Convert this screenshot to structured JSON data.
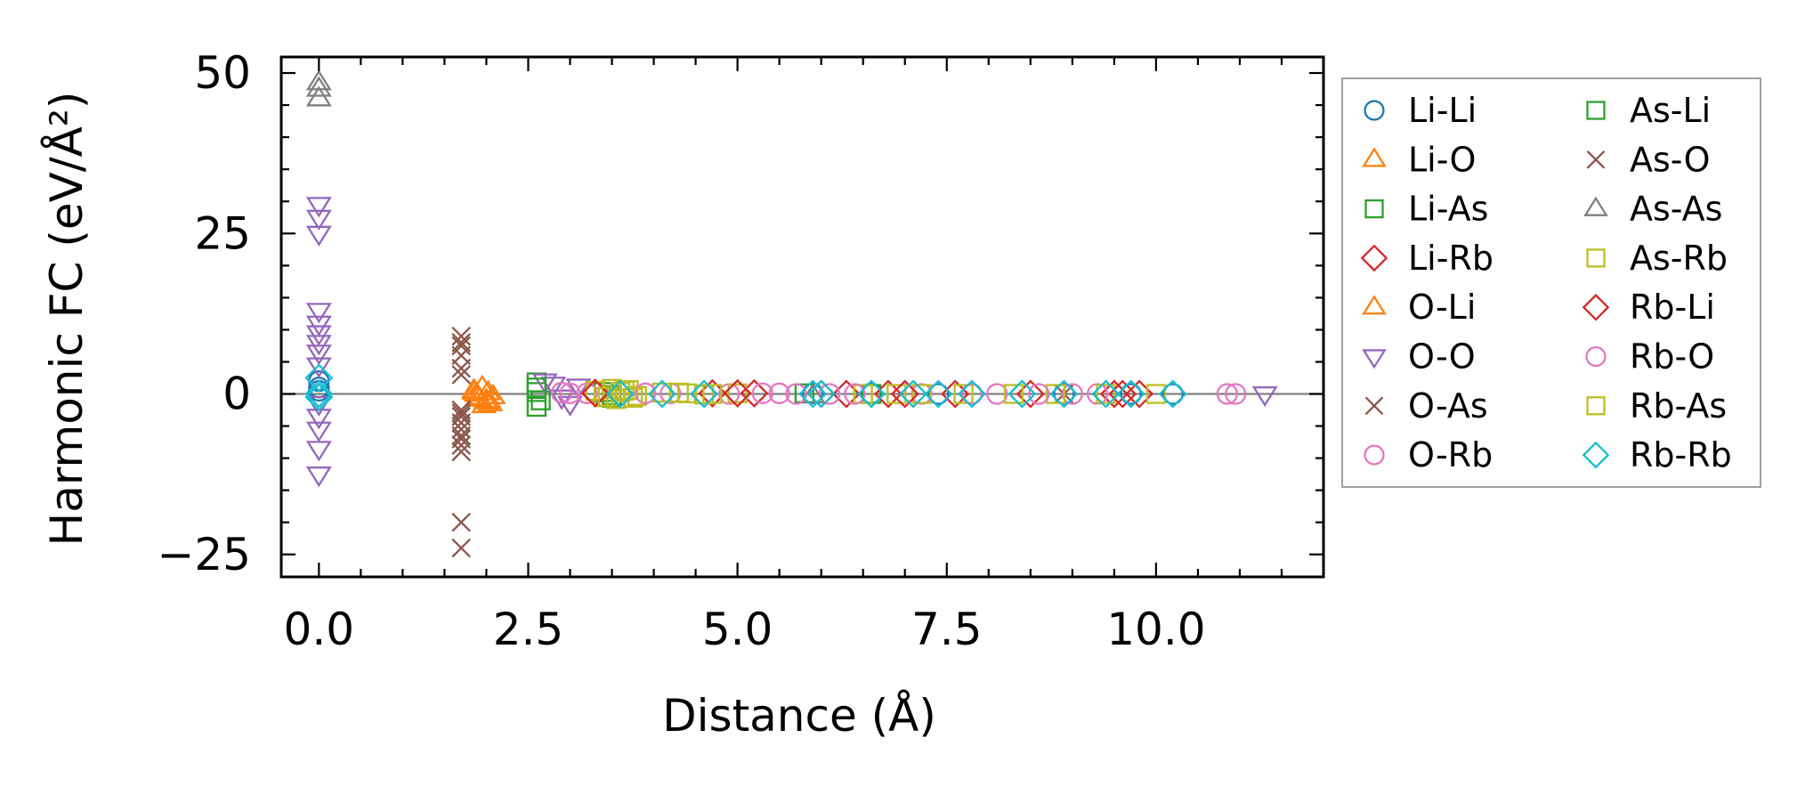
{
  "chart_data": {
    "type": "scatter",
    "xlabel": "Distance (Å)",
    "ylabel": "Harmonic FC (eV/Å²)",
    "xlim": [
      -0.45,
      12.0
    ],
    "ylim": [
      -28.5,
      52.5
    ],
    "x_ticks": [
      0.0,
      2.5,
      5.0,
      7.5,
      10.0
    ],
    "x_tick_labels": [
      "0.0",
      "2.5",
      "5.0",
      "7.5",
      "10.0"
    ],
    "y_ticks": [
      -25,
      0,
      25,
      50
    ],
    "y_tick_labels": [
      "−25",
      "0",
      "25",
      "50"
    ],
    "zero_line": true,
    "grid": false,
    "legend_position": "outside-right",
    "legend_columns": 2,
    "series": [
      {
        "name": "Li-Li",
        "marker": "circle",
        "color": "#1f77b4",
        "x": [
          0.0,
          0.0,
          0.0,
          5.9,
          6.6,
          7.4,
          7.8,
          8.9,
          9.7,
          10.2
        ],
        "y": [
          2.0,
          1.0,
          0.5,
          0.1,
          0.1,
          0.0,
          0.0,
          0.0,
          0.0,
          0.0
        ]
      },
      {
        "name": "Li-O",
        "marker": "triangle-up",
        "color": "#ff7f0e",
        "x": [
          1.85,
          1.9,
          1.95,
          2.0,
          2.05,
          1.88,
          1.97,
          2.02
        ],
        "y": [
          0.5,
          -0.5,
          1.0,
          -1.0,
          -1.5,
          0.0,
          -1.8,
          0.2
        ]
      },
      {
        "name": "Li-As",
        "marker": "square",
        "color": "#2ca02c",
        "x": [
          2.6,
          2.6,
          2.6,
          2.65,
          3.4,
          3.5,
          5.8,
          6.6
        ],
        "y": [
          1.8,
          0.3,
          -2.0,
          -1.0,
          0.3,
          -0.2,
          0.1,
          0.0
        ]
      },
      {
        "name": "Li-Rb",
        "marker": "diamond",
        "color": "#d62728",
        "x": [
          3.3,
          4.7,
          5.2,
          6.3,
          6.8,
          7.6,
          8.5,
          9.5,
          9.8
        ],
        "y": [
          0.2,
          0.1,
          0.1,
          0.0,
          0.0,
          0.0,
          0.0,
          0.0,
          0.0
        ]
      },
      {
        "name": "O-Li",
        "marker": "triangle-up",
        "color": "#ff7f0e",
        "x": [
          1.86,
          1.92,
          2.0,
          2.08
        ],
        "y": [
          0.3,
          -0.8,
          -1.2,
          -0.4
        ]
      },
      {
        "name": "O-O",
        "marker": "triangle-down",
        "color": "#9467bd",
        "x": [
          0.0,
          0.0,
          0.0,
          0.0,
          0.0,
          0.0,
          0.0,
          0.0,
          0.0,
          0.0,
          0.0,
          0.0,
          0.0,
          0.0,
          2.7,
          2.8,
          2.9,
          3.0,
          3.1,
          11.3
        ],
        "y": [
          29.5,
          27.5,
          25.0,
          13.0,
          11.0,
          9.5,
          8.0,
          6.5,
          4.5,
          -1.5,
          -3.5,
          -5.5,
          -8.5,
          -12.5,
          2.0,
          1.5,
          -0.5,
          -1.5,
          1.2,
          0.0
        ]
      },
      {
        "name": "O-As",
        "marker": "x",
        "color": "#8c564b",
        "x": [
          1.7,
          1.7,
          1.7,
          1.7,
          1.7,
          1.7,
          1.7,
          1.7,
          1.7,
          1.7,
          1.7,
          1.7,
          1.7,
          1.7,
          8.9
        ],
        "y": [
          9.0,
          7.5,
          6.0,
          4.0,
          3.0,
          -2.5,
          -3.5,
          -4.5,
          -5.5,
          -7.0,
          -8.0,
          -9.0,
          -20.0,
          -24.0,
          0.0
        ]
      },
      {
        "name": "O-Rb",
        "marker": "circle",
        "color": "#e377c2",
        "x": [
          2.9,
          3.2,
          4.2,
          4.9,
          5.5,
          6.1,
          7.2,
          8.1,
          9.0,
          9.3,
          10.85,
          10.95
        ],
        "y": [
          0.2,
          0.1,
          0.1,
          0.0,
          0.1,
          0.0,
          0.0,
          0.0,
          0.0,
          0.0,
          0.0,
          0.0
        ]
      },
      {
        "name": "As-Li",
        "marker": "square",
        "color": "#2ca02c",
        "x": [
          2.6,
          3.5
        ],
        "y": [
          1.0,
          -0.6
        ]
      },
      {
        "name": "As-O",
        "marker": "x",
        "color": "#8c564b",
        "x": [
          1.7,
          1.7,
          1.7
        ],
        "y": [
          8.0,
          -3.0,
          -6.5
        ]
      },
      {
        "name": "As-As",
        "marker": "triangle-up",
        "color": "#7f7f7f",
        "x": [
          0.0,
          0.0,
          0.0,
          5.9
        ],
        "y": [
          48.5,
          47.5,
          46.0,
          -0.3
        ]
      },
      {
        "name": "As-Rb",
        "marker": "square",
        "color": "#bcbd22",
        "x": [
          3.3,
          3.4,
          3.5,
          3.55,
          3.6,
          3.7,
          3.8,
          4.1,
          4.4,
          4.6,
          5.0,
          6.5,
          6.9,
          7.2,
          7.7,
          8.3,
          8.8,
          9.4,
          10.0
        ],
        "y": [
          0.5,
          -0.5,
          0.8,
          -0.8,
          0.3,
          0.6,
          -0.3,
          0.2,
          0.1,
          -0.1,
          0.1,
          0.0,
          0.0,
          0.0,
          0.0,
          0.0,
          0.0,
          0.0,
          0.0
        ]
      },
      {
        "name": "Rb-Li",
        "marker": "diamond",
        "color": "#d62728",
        "x": [
          3.3,
          5.0,
          6.0,
          7.0,
          9.6
        ],
        "y": [
          0.1,
          0.1,
          0.0,
          0.0,
          0.0
        ]
      },
      {
        "name": "Rb-O",
        "marker": "circle",
        "color": "#e377c2",
        "x": [
          3.0,
          3.9,
          5.3,
          5.7,
          6.4,
          7.8,
          8.6
        ],
        "y": [
          0.1,
          0.1,
          0.1,
          0.0,
          0.0,
          0.0,
          0.0
        ]
      },
      {
        "name": "Rb-As",
        "marker": "square",
        "color": "#bcbd22",
        "x": [
          3.45,
          3.65,
          3.75,
          4.3,
          4.7
        ],
        "y": [
          -0.4,
          0.5,
          -0.6,
          0.2,
          0.0
        ]
      },
      {
        "name": "Rb-Rb",
        "marker": "diamond",
        "color": "#17becf",
        "x": [
          0.0,
          0.0,
          0.0,
          3.6,
          4.1,
          4.6,
          5.9,
          6.0,
          6.6,
          7.1,
          7.4,
          7.8,
          8.4,
          8.9,
          9.4,
          9.7,
          10.2
        ],
        "y": [
          2.5,
          0.0,
          -0.5,
          0.0,
          0.0,
          0.0,
          0.0,
          0.0,
          0.0,
          0.0,
          0.0,
          0.0,
          0.0,
          0.0,
          0.0,
          0.0,
          0.0
        ]
      }
    ]
  }
}
